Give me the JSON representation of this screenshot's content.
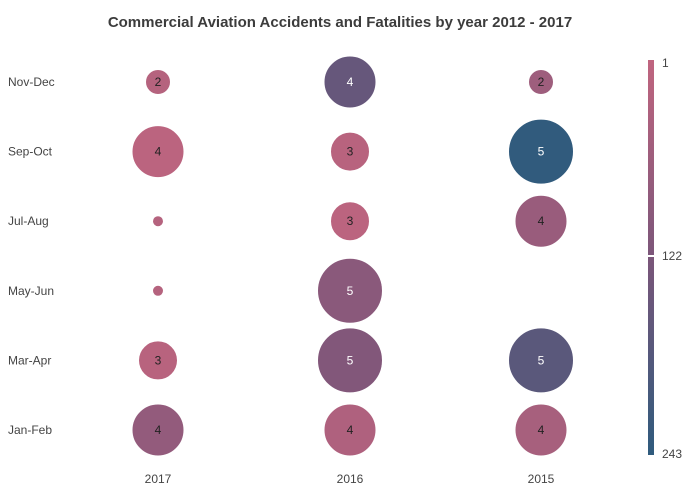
{
  "chart_data": {
    "type": "bubble-heatmap",
    "title": "Commercial Aviation Accidents and Fatalities by year 2012 - 2017",
    "x_categories": [
      "2017",
      "2016",
      "2015"
    ],
    "y_categories": [
      "Nov-Dec",
      "Sep-Oct",
      "Jul-Aug",
      "May-Jun",
      "Mar-Apr",
      "Jan-Feb"
    ],
    "legend": {
      "min_label": "1",
      "mid_label": "122",
      "max_label": "243",
      "min": 1,
      "mid": 122,
      "max": 243,
      "color_min": "#c0657f",
      "color_mid": "#7b567a",
      "color_max": "#2f5b7d",
      "placement": "right"
    },
    "points": [
      {
        "x": "2017",
        "y": "Nov-Dec",
        "size": 2,
        "color_value": 20,
        "label": "2"
      },
      {
        "x": "2016",
        "y": "Nov-Dec",
        "size": 4,
        "color_value": 155,
        "label": "4"
      },
      {
        "x": "2015",
        "y": "Nov-Dec",
        "size": 2,
        "color_value": 60,
        "label": "2"
      },
      {
        "x": "2017",
        "y": "Sep-Oct",
        "size": 4,
        "color_value": 10,
        "label": "4"
      },
      {
        "x": "2016",
        "y": "Sep-Oct",
        "size": 3,
        "color_value": 15,
        "label": "3"
      },
      {
        "x": "2015",
        "y": "Sep-Oct",
        "size": 5,
        "color_value": 240,
        "label": "5"
      },
      {
        "x": "2017",
        "y": "Jul-Aug",
        "size": 1,
        "color_value": 20,
        "label": ""
      },
      {
        "x": "2016",
        "y": "Jul-Aug",
        "size": 3,
        "color_value": 10,
        "label": "3"
      },
      {
        "x": "2015",
        "y": "Jul-Aug",
        "size": 4,
        "color_value": 70,
        "label": "4"
      },
      {
        "x": "2017",
        "y": "May-Jun",
        "size": 1,
        "color_value": 20,
        "label": ""
      },
      {
        "x": "2016",
        "y": "May-Jun",
        "size": 5,
        "color_value": 95,
        "label": "5"
      },
      {
        "x": "2017",
        "y": "Mar-Apr",
        "size": 3,
        "color_value": 15,
        "label": "3"
      },
      {
        "x": "2016",
        "y": "Mar-Apr",
        "size": 5,
        "color_value": 110,
        "label": "5"
      },
      {
        "x": "2015",
        "y": "Mar-Apr",
        "size": 5,
        "color_value": 175,
        "label": "5"
      },
      {
        "x": "2017",
        "y": "Jan-Feb",
        "size": 4,
        "color_value": 80,
        "label": "4"
      },
      {
        "x": "2016",
        "y": "Jan-Feb",
        "size": 4,
        "color_value": 30,
        "label": "4"
      },
      {
        "x": "2015",
        "y": "Jan-Feb",
        "size": 4,
        "color_value": 45,
        "label": "4"
      }
    ]
  }
}
